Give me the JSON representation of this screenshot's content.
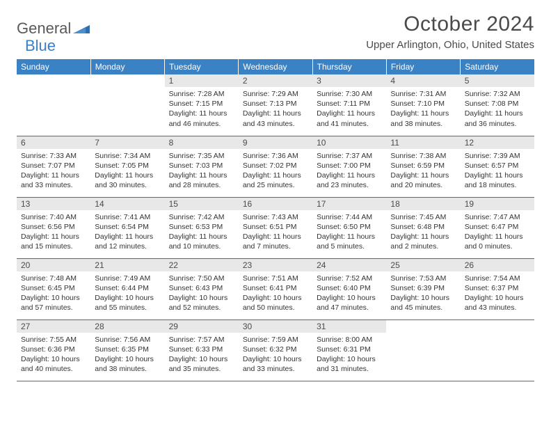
{
  "brand": {
    "part1": "General",
    "part2": "Blue"
  },
  "title": "October 2024",
  "location": "Upper Arlington, Ohio, United States",
  "colors": {
    "header_bg": "#3b82c4",
    "header_text": "#ffffff",
    "row_border": "#3b6fa3",
    "daynum_bg": "#e8e8e8",
    "text": "#333333",
    "brand_gray": "#595959",
    "brand_blue": "#3b7fc4"
  },
  "daysOfWeek": [
    "Sunday",
    "Monday",
    "Tuesday",
    "Wednesday",
    "Thursday",
    "Friday",
    "Saturday"
  ],
  "weeks": [
    [
      null,
      null,
      {
        "n": "1",
        "sunrise": "7:28 AM",
        "sunset": "7:15 PM",
        "daylight": "11 hours and 46 minutes."
      },
      {
        "n": "2",
        "sunrise": "7:29 AM",
        "sunset": "7:13 PM",
        "daylight": "11 hours and 43 minutes."
      },
      {
        "n": "3",
        "sunrise": "7:30 AM",
        "sunset": "7:11 PM",
        "daylight": "11 hours and 41 minutes."
      },
      {
        "n": "4",
        "sunrise": "7:31 AM",
        "sunset": "7:10 PM",
        "daylight": "11 hours and 38 minutes."
      },
      {
        "n": "5",
        "sunrise": "7:32 AM",
        "sunset": "7:08 PM",
        "daylight": "11 hours and 36 minutes."
      }
    ],
    [
      {
        "n": "6",
        "sunrise": "7:33 AM",
        "sunset": "7:07 PM",
        "daylight": "11 hours and 33 minutes."
      },
      {
        "n": "7",
        "sunrise": "7:34 AM",
        "sunset": "7:05 PM",
        "daylight": "11 hours and 30 minutes."
      },
      {
        "n": "8",
        "sunrise": "7:35 AM",
        "sunset": "7:03 PM",
        "daylight": "11 hours and 28 minutes."
      },
      {
        "n": "9",
        "sunrise": "7:36 AM",
        "sunset": "7:02 PM",
        "daylight": "11 hours and 25 minutes."
      },
      {
        "n": "10",
        "sunrise": "7:37 AM",
        "sunset": "7:00 PM",
        "daylight": "11 hours and 23 minutes."
      },
      {
        "n": "11",
        "sunrise": "7:38 AM",
        "sunset": "6:59 PM",
        "daylight": "11 hours and 20 minutes."
      },
      {
        "n": "12",
        "sunrise": "7:39 AM",
        "sunset": "6:57 PM",
        "daylight": "11 hours and 18 minutes."
      }
    ],
    [
      {
        "n": "13",
        "sunrise": "7:40 AM",
        "sunset": "6:56 PM",
        "daylight": "11 hours and 15 minutes."
      },
      {
        "n": "14",
        "sunrise": "7:41 AM",
        "sunset": "6:54 PM",
        "daylight": "11 hours and 12 minutes."
      },
      {
        "n": "15",
        "sunrise": "7:42 AM",
        "sunset": "6:53 PM",
        "daylight": "11 hours and 10 minutes."
      },
      {
        "n": "16",
        "sunrise": "7:43 AM",
        "sunset": "6:51 PM",
        "daylight": "11 hours and 7 minutes."
      },
      {
        "n": "17",
        "sunrise": "7:44 AM",
        "sunset": "6:50 PM",
        "daylight": "11 hours and 5 minutes."
      },
      {
        "n": "18",
        "sunrise": "7:45 AM",
        "sunset": "6:48 PM",
        "daylight": "11 hours and 2 minutes."
      },
      {
        "n": "19",
        "sunrise": "7:47 AM",
        "sunset": "6:47 PM",
        "daylight": "11 hours and 0 minutes."
      }
    ],
    [
      {
        "n": "20",
        "sunrise": "7:48 AM",
        "sunset": "6:45 PM",
        "daylight": "10 hours and 57 minutes."
      },
      {
        "n": "21",
        "sunrise": "7:49 AM",
        "sunset": "6:44 PM",
        "daylight": "10 hours and 55 minutes."
      },
      {
        "n": "22",
        "sunrise": "7:50 AM",
        "sunset": "6:43 PM",
        "daylight": "10 hours and 52 minutes."
      },
      {
        "n": "23",
        "sunrise": "7:51 AM",
        "sunset": "6:41 PM",
        "daylight": "10 hours and 50 minutes."
      },
      {
        "n": "24",
        "sunrise": "7:52 AM",
        "sunset": "6:40 PM",
        "daylight": "10 hours and 47 minutes."
      },
      {
        "n": "25",
        "sunrise": "7:53 AM",
        "sunset": "6:39 PM",
        "daylight": "10 hours and 45 minutes."
      },
      {
        "n": "26",
        "sunrise": "7:54 AM",
        "sunset": "6:37 PM",
        "daylight": "10 hours and 43 minutes."
      }
    ],
    [
      {
        "n": "27",
        "sunrise": "7:55 AM",
        "sunset": "6:36 PM",
        "daylight": "10 hours and 40 minutes."
      },
      {
        "n": "28",
        "sunrise": "7:56 AM",
        "sunset": "6:35 PM",
        "daylight": "10 hours and 38 minutes."
      },
      {
        "n": "29",
        "sunrise": "7:57 AM",
        "sunset": "6:33 PM",
        "daylight": "10 hours and 35 minutes."
      },
      {
        "n": "30",
        "sunrise": "7:59 AM",
        "sunset": "6:32 PM",
        "daylight": "10 hours and 33 minutes."
      },
      {
        "n": "31",
        "sunrise": "8:00 AM",
        "sunset": "6:31 PM",
        "daylight": "10 hours and 31 minutes."
      },
      null,
      null
    ]
  ]
}
